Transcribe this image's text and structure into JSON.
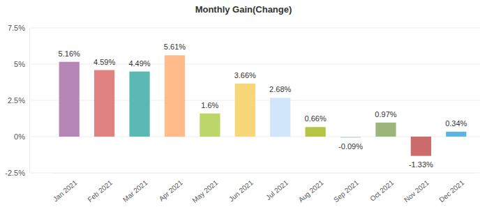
{
  "chart_data": {
    "type": "bar",
    "title": "Monthly Gain(Change)",
    "categories": [
      "Jan 2021",
      "Feb 2021",
      "Mar 2021",
      "Apr 2021",
      "May 2021",
      "Jun 2021",
      "Jul 2021",
      "Aug 2021",
      "Sep 2021",
      "Oct 2021",
      "Nov 2021",
      "Dec 2021"
    ],
    "values": [
      5.16,
      4.59,
      4.49,
      5.61,
      1.6,
      3.66,
      2.68,
      0.66,
      -0.09,
      0.97,
      -1.33,
      0.34
    ],
    "value_labels": [
      "5.16%",
      "4.59%",
      "4.49%",
      "5.61%",
      "1.6%",
      "3.66%",
      "2.68%",
      "0.66%",
      "-0.09%",
      "0.97%",
      "-1.33%",
      "0.34%"
    ],
    "colors": [
      "#b586b6",
      "#e08282",
      "#5cb8b2",
      "#ffbb8a",
      "#bcd66a",
      "#f7d778",
      "#d2e6fb",
      "#b6c443",
      "#cfe0e6",
      "#9bb57c",
      "#cc6b6b",
      "#5ab5e6"
    ],
    "ylim": [
      -2.5,
      7.5
    ],
    "yticks": [
      {
        "value": -2.5,
        "label": "-2.5%"
      },
      {
        "value": 0,
        "label": "0%"
      },
      {
        "value": 2.5,
        "label": "2.5%"
      },
      {
        "value": 5,
        "label": "5%"
      },
      {
        "value": 7.5,
        "label": "7.5%"
      }
    ],
    "grid": true,
    "data_labels": true
  }
}
